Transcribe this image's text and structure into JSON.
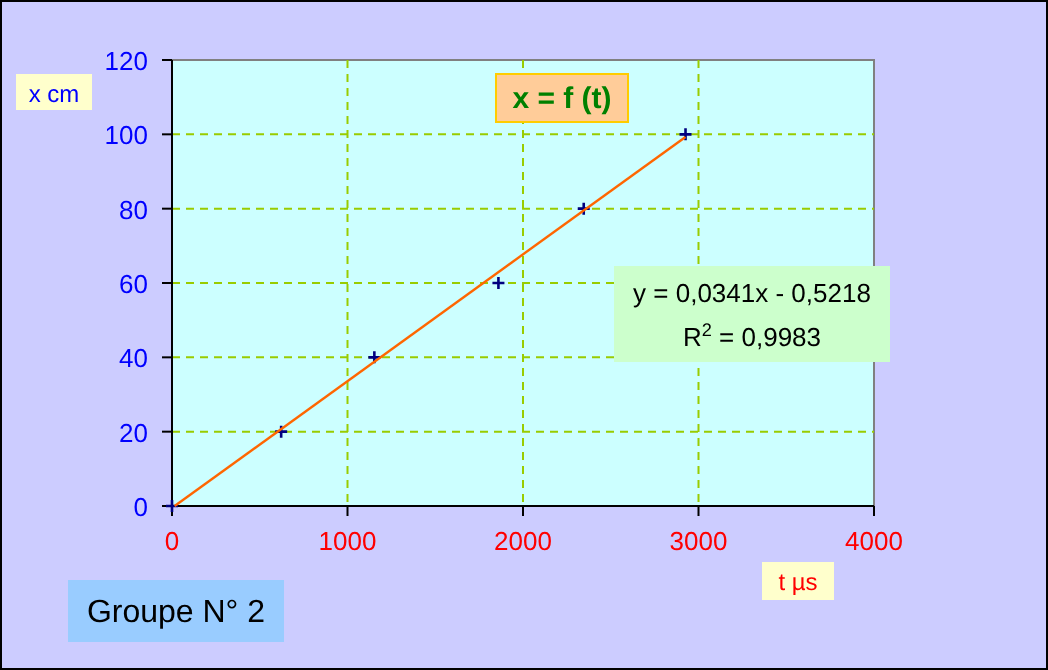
{
  "chart_data": {
    "type": "scatter",
    "title": "x = f (t)",
    "xlabel": "t µs",
    "ylabel": "x cm",
    "series": [
      {
        "color": "#000080",
        "x": [
          0,
          622,
          1153,
          1860,
          2346,
          2926
        ],
        "values": [
          0,
          20,
          40,
          60,
          80,
          100
        ],
        "marker": "cross"
      },
      {
        "type": "line",
        "color": "#ff6600",
        "x": [
          15,
          2926
        ],
        "values": [
          0,
          99.3
        ],
        "line_style": "solid",
        "marker": "none"
      }
    ],
    "xlim": [
      0,
      4000
    ],
    "xticks": [
      0,
      1000,
      2000,
      3000,
      4000
    ],
    "ylim": [
      0,
      120
    ],
    "yticks": [
      0,
      20,
      40,
      60,
      80,
      100,
      120
    ],
    "grid": true,
    "annotations": [
      "y = 0,0341x - 0,5218",
      "R$^{2}$ = 0,9983",
      "Groupe N° 2"
    ]
  }
}
